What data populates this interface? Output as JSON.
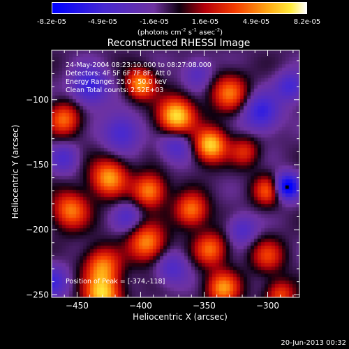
{
  "colorbar": {
    "ticks": [
      "-8.2e-05",
      "-4.9e-05",
      "-1.6e-05",
      "1.6e-05",
      "4.9e-05",
      "8.2e-05"
    ],
    "units": "(photons cm",
    "units_exp1": "-2",
    "units_mid": " s",
    "units_exp2": "-1",
    "units_end": " asec",
    "units_exp3": "-2",
    "units_close": ")",
    "min": -8.2e-05,
    "max": 8.2e-05
  },
  "chart_data": {
    "type": "heatmap",
    "title": "Reconstructed RHESSI Image",
    "xlabel": "Heliocentric X (arcsec)",
    "ylabel": "Heliocentric Y (arcsec)",
    "xlim": [
      -470,
      -275
    ],
    "ylim": [
      -252,
      -62
    ],
    "x_ticks": [
      -450,
      -400,
      -350,
      -300
    ],
    "y_ticks": [
      -250,
      -200,
      -150,
      -100
    ],
    "x_tick_labels": [
      "−450",
      "−400",
      "−350",
      "−300"
    ],
    "y_tick_labels": [
      "−250",
      "−200",
      "−150",
      "−100"
    ],
    "colormap": "rhessi-bwr",
    "peak": {
      "x": -374,
      "y": -118
    },
    "blobs": [
      {
        "x": -372,
        "y": -113,
        "amp": 1.0,
        "s": 10
      },
      {
        "x": -345,
        "y": -135,
        "amp": 0.95,
        "s": 9
      },
      {
        "x": -400,
        "y": -88,
        "amp": 0.8,
        "s": 8
      },
      {
        "x": -330,
        "y": -95,
        "amp": 0.65,
        "s": 10
      },
      {
        "x": -460,
        "y": -115,
        "amp": 0.65,
        "s": 9
      },
      {
        "x": -425,
        "y": -160,
        "amp": 0.8,
        "s": 10
      },
      {
        "x": -393,
        "y": -170,
        "amp": 0.75,
        "s": 9
      },
      {
        "x": -360,
        "y": -185,
        "amp": 0.7,
        "s": 9
      },
      {
        "x": -455,
        "y": -185,
        "amp": 0.7,
        "s": 10
      },
      {
        "x": -395,
        "y": -210,
        "amp": 0.75,
        "s": 10
      },
      {
        "x": -430,
        "y": -228,
        "amp": 0.7,
        "s": 10
      },
      {
        "x": -430,
        "y": -250,
        "amp": 0.9,
        "s": 10
      },
      {
        "x": -345,
        "y": -215,
        "amp": 0.65,
        "s": 9
      },
      {
        "x": -335,
        "y": -245,
        "amp": 0.75,
        "s": 9
      },
      {
        "x": -300,
        "y": -170,
        "amp": 0.6,
        "s": 8
      },
      {
        "x": -300,
        "y": -220,
        "amp": 0.5,
        "s": 9
      },
      {
        "x": -290,
        "y": -250,
        "amp": 0.55,
        "s": 8
      },
      {
        "x": -318,
        "y": -140,
        "amp": 0.45,
        "s": 8
      },
      {
        "x": -372,
        "y": -135,
        "amp": -0.45,
        "s": 9
      },
      {
        "x": -415,
        "y": -125,
        "amp": -0.5,
        "s": 10
      },
      {
        "x": -440,
        "y": -90,
        "amp": -0.6,
        "s": 10
      },
      {
        "x": -285,
        "y": -167,
        "amp": -1.0,
        "s": 7
      },
      {
        "x": -305,
        "y": -110,
        "amp": -0.6,
        "s": 10
      },
      {
        "x": -355,
        "y": -80,
        "amp": -0.35,
        "s": 8
      },
      {
        "x": -320,
        "y": -200,
        "amp": -0.4,
        "s": 8
      },
      {
        "x": -375,
        "y": -230,
        "amp": -0.4,
        "s": 9
      },
      {
        "x": -470,
        "y": -240,
        "amp": -0.5,
        "s": 9
      },
      {
        "x": -460,
        "y": -145,
        "amp": -0.4,
        "s": 8
      },
      {
        "x": -410,
        "y": -190,
        "amp": -0.35,
        "s": 8
      },
      {
        "x": -282,
        "y": -90,
        "amp": -0.5,
        "s": 8
      }
    ]
  },
  "info": {
    "line1": "24-May-2004 08:23:10.000 to 08:27:08.000",
    "line2": "Detectors: 4F 5F 6F 7F 8F, Att 0",
    "line3": "Energy Range: 25.0 - 50.0 keV",
    "line4": "Clean     Total counts: 2.52E+03",
    "peak_text": "Position of Peak = [-374,-118]"
  },
  "footer": "20-Jun-2013 00:32"
}
